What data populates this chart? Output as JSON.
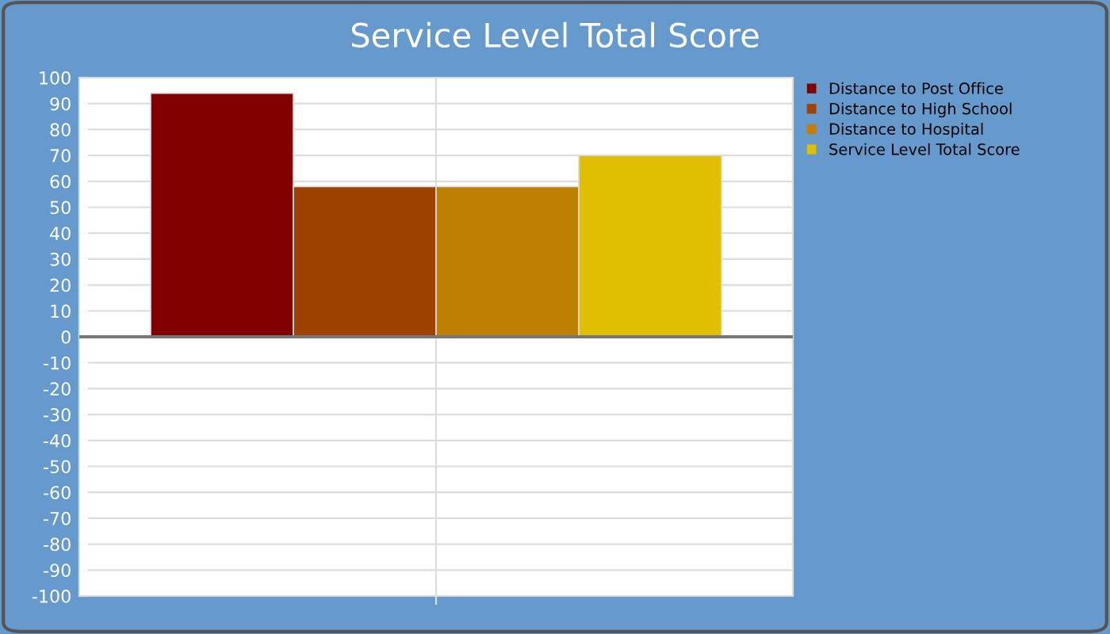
{
  "chart_data": {
    "type": "bar",
    "title": "Service Level Total Score",
    "categories": [
      null
    ],
    "series": [
      {
        "name": "Distance to Post Office",
        "color": "#800000",
        "values": [
          94
        ]
      },
      {
        "name": "Distance to High School",
        "color": "#9e4200",
        "values": [
          58
        ]
      },
      {
        "name": "Distance to Hospital",
        "color": "#bf7f00",
        "values": [
          58
        ]
      },
      {
        "name": "Service Level Total Score",
        "color": "#dfbf00",
        "values": [
          70
        ]
      }
    ],
    "ylim": [
      -100,
      100
    ],
    "yticks": [
      -100,
      -90,
      -80,
      -70,
      -60,
      -50,
      -40,
      -30,
      -20,
      -10,
      0,
      10,
      20,
      30,
      40,
      50,
      60,
      70,
      80,
      90,
      100
    ],
    "grid": true,
    "legend": "top right"
  }
}
